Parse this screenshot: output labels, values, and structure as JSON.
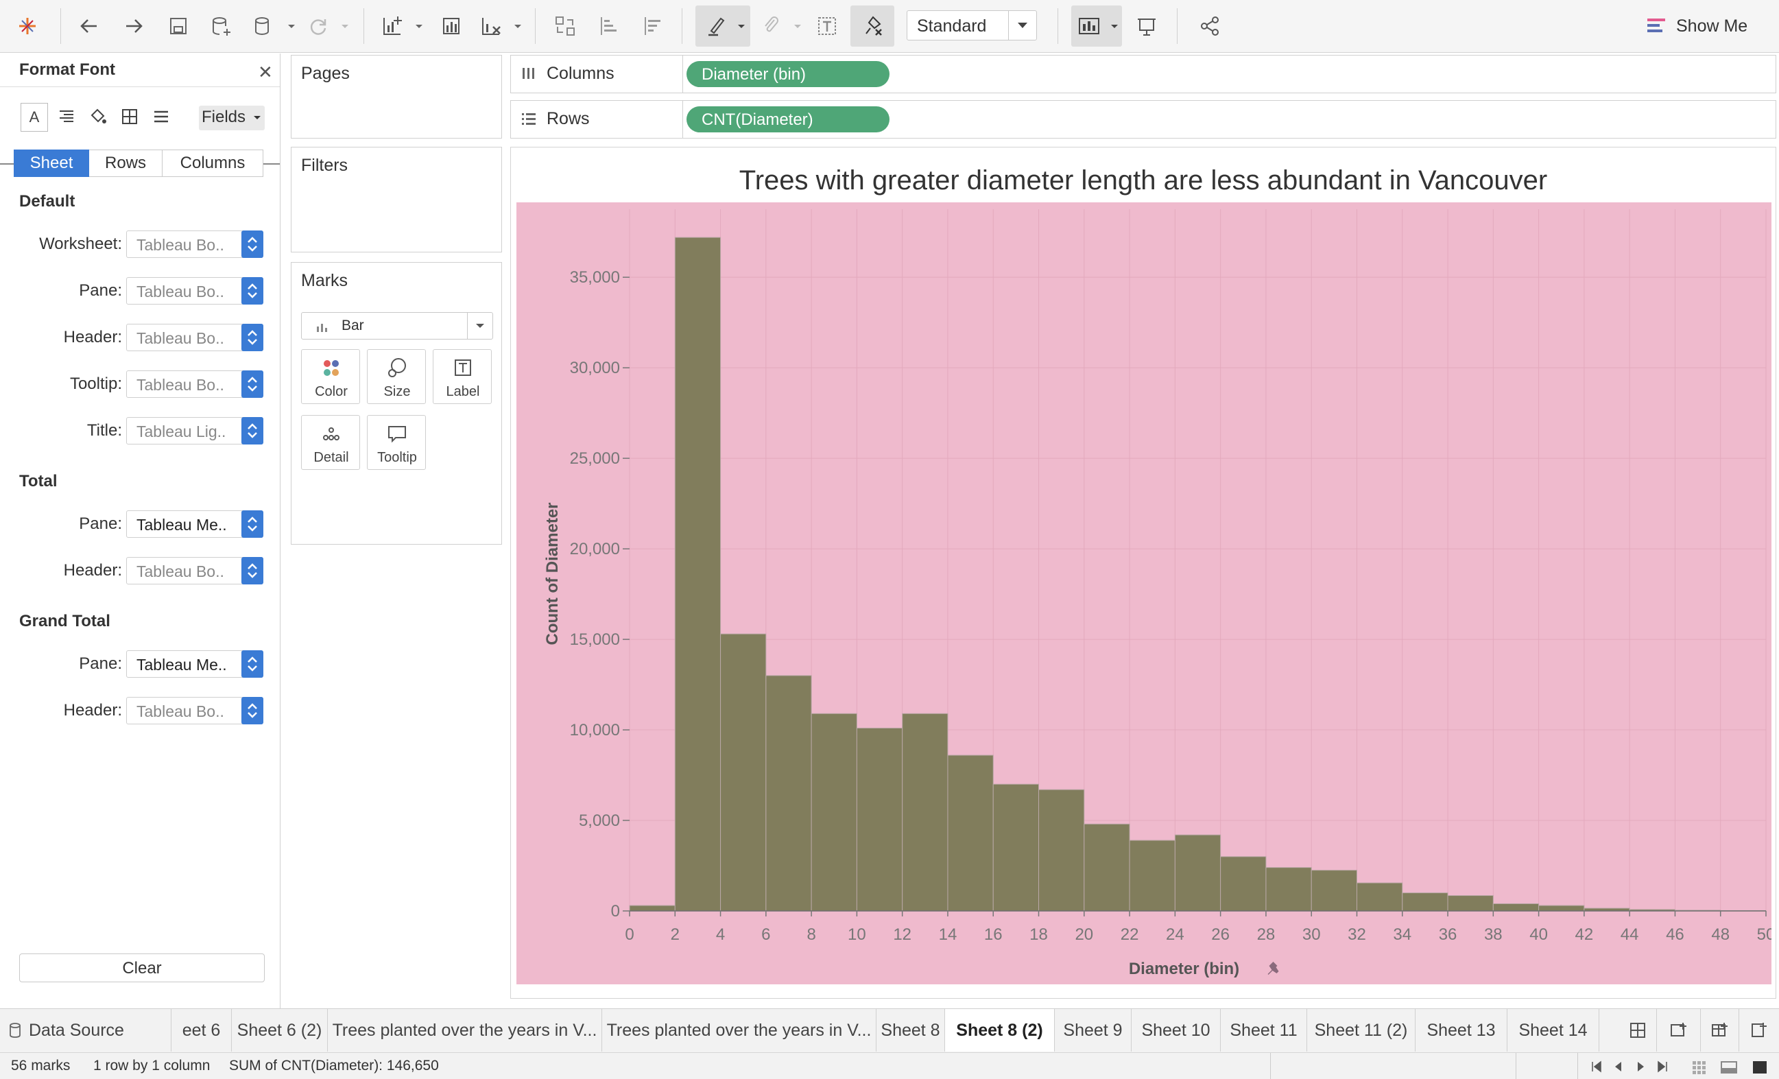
{
  "toolbar": {
    "mode_select": "Standard",
    "show_me": "Show Me",
    "icons": [
      "tableau-logo-icon",
      "undo-icon",
      "redo-icon",
      "save-icon",
      "new-datasource-icon",
      "pause-updates-icon",
      "refresh-icon",
      "new-worksheet-icon",
      "duplicate-sheet-icon",
      "clear-sheet-icon",
      "swap-icon",
      "sort-ascending-icon",
      "sort-descending-icon",
      "highlight-icon",
      "group-icon",
      "labels-icon",
      "fix-axes-icon",
      "fit-icon",
      "presentation-icon",
      "share-icon"
    ]
  },
  "format_panel": {
    "title": "Format Font",
    "fields_label": "Fields",
    "tabs": [
      "Sheet",
      "Rows",
      "Columns"
    ],
    "active_tab": "Sheet",
    "sections": [
      {
        "title": "Default",
        "rows": [
          {
            "label": "Worksheet:",
            "value": "Tableau Bo.."
          },
          {
            "label": "Pane:",
            "value": "Tableau Bo.."
          },
          {
            "label": "Header:",
            "value": "Tableau Bo.."
          },
          {
            "label": "Tooltip:",
            "value": "Tableau Bo.."
          },
          {
            "label": "Title:",
            "value": "Tableau Lig.."
          }
        ]
      },
      {
        "title": "Total",
        "rows": [
          {
            "label": "Pane:",
            "value": "Tableau Me.."
          },
          {
            "label": "Header:",
            "value": "Tableau Bo.."
          }
        ]
      },
      {
        "title": "Grand Total",
        "rows": [
          {
            "label": "Pane:",
            "value": "Tableau Me.."
          },
          {
            "label": "Header:",
            "value": "Tableau Bo.."
          }
        ]
      }
    ],
    "clear_label": "Clear"
  },
  "pages": {
    "title": "Pages"
  },
  "filters": {
    "title": "Filters"
  },
  "marks": {
    "title": "Marks",
    "type": "Bar",
    "buttons": [
      "Color",
      "Size",
      "Label",
      "Detail",
      "Tooltip"
    ]
  },
  "shelves": {
    "columns_label": "Columns",
    "columns_pill": "Diameter (bin)",
    "rows_label": "Rows",
    "rows_pill": "CNT(Diameter)"
  },
  "chart_data": {
    "type": "bar",
    "title": "Trees with greater diameter length are less abundant in Vancouver",
    "xlabel": "Diameter (bin)",
    "ylabel": "Count of Diameter",
    "x_ticks": [
      0,
      2,
      4,
      6,
      8,
      10,
      12,
      14,
      16,
      18,
      20,
      22,
      24,
      26,
      28,
      30,
      32,
      34,
      36,
      38,
      40,
      42,
      44,
      46,
      48,
      50
    ],
    "y_ticks": [
      0,
      5000,
      10000,
      15000,
      20000,
      25000,
      30000,
      35000
    ],
    "y_tick_labels": [
      "0",
      "5,000",
      "10,000",
      "15,000",
      "20,000",
      "25,000",
      "30,000",
      "35,000"
    ],
    "xlim": [
      0,
      50
    ],
    "ylim": [
      0,
      38000
    ],
    "bin_width": 2,
    "bins": [
      0,
      2,
      4,
      6,
      8,
      10,
      12,
      14,
      16,
      18,
      20,
      22,
      24,
      26,
      28,
      30,
      32,
      34,
      36,
      38,
      40,
      42,
      44,
      46,
      48
    ],
    "values": [
      300,
      37200,
      15300,
      13000,
      10900,
      10100,
      10900,
      8600,
      7000,
      6700,
      4800,
      3900,
      4200,
      3000,
      2400,
      2250,
      1550,
      1000,
      850,
      400,
      300,
      150,
      80,
      40,
      20
    ],
    "background": "#efbacd",
    "bar_color": "#817d5c"
  },
  "sheet_tabs": {
    "data_source": "Data Source",
    "tabs": [
      "eet 6",
      "Sheet 6 (2)",
      "Trees planted over the years in V...",
      "Trees planted over the years in V...",
      "Sheet 8",
      "Sheet 8 (2)",
      "Sheet 9",
      "Sheet 10",
      "Sheet 11",
      "Sheet 11 (2)",
      "Sheet 13",
      "Sheet 14"
    ],
    "active": "Sheet 8 (2)"
  },
  "status": {
    "marks": "56 marks",
    "dims": "1 row by 1 column",
    "sum": "SUM of CNT(Diameter): 146,650"
  }
}
